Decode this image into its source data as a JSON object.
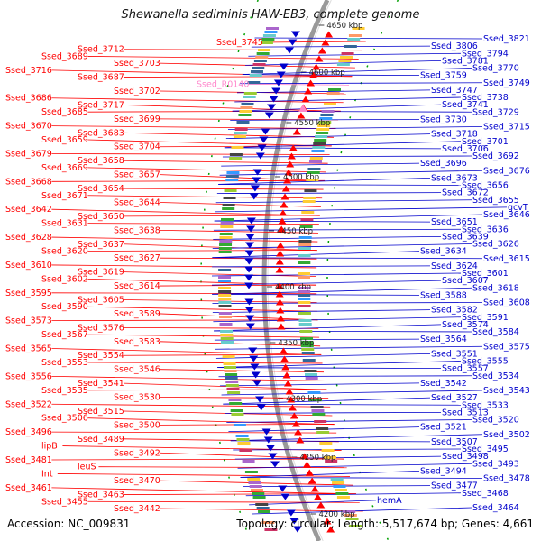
{
  "title": "Shewanella sediminis HAW-EB3, complete genome",
  "footer": {
    "accession": "Accession: NC_009831",
    "summary": "Topology: circular; Length: 5,517,674 bp; Genes: 4,661"
  },
  "colors": {
    "forward": "#ff0000",
    "reverse": "#0000cc",
    "rna": "#ff88cc",
    "backbone": "#999999",
    "gc_marker": "#00a000"
  },
  "kbp_ticks": [
    "4650 kbp",
    "4600 kbp",
    "4550 kbp",
    "4500 kbp",
    "4450 kbp",
    "4400 kbp",
    "4350 kbp",
    "4300 kbp",
    "4250 kbp",
    "4200 kbp"
  ],
  "left_labels": [
    "Ssed_3745",
    "Ssed_3712",
    "Ssed_3689",
    "Ssed_3703",
    "Ssed_3716",
    "Ssed_3687",
    "Ssed_R0140",
    "Ssed_3702",
    "Ssed_3686",
    "Ssed_3717",
    "Ssed_3685",
    "Ssed_3699",
    "Ssed_3670",
    "Ssed_3683",
    "Ssed_3659",
    "Ssed_3704",
    "Ssed_3679",
    "Ssed_3658",
    "Ssed_3669",
    "Ssed_3657",
    "Ssed_3668",
    "Ssed_3654",
    "Ssed_3671",
    "Ssed_3644",
    "Ssed_3642",
    "Ssed_3650",
    "Ssed_3631",
    "Ssed_3638",
    "Ssed_3628",
    "Ssed_3637",
    "Ssed_3620",
    "Ssed_3627",
    "Ssed_3610",
    "Ssed_3619",
    "Ssed_3602",
    "Ssed_3614",
    "Ssed_3595",
    "Ssed_3605",
    "Ssed_3590",
    "Ssed_3589",
    "Ssed_3573",
    "Ssed_3576",
    "Ssed_3567",
    "Ssed_3583",
    "Ssed_3565",
    "Ssed_3554",
    "Ssed_3553",
    "Ssed_3546",
    "Ssed_3556",
    "Ssed_3541",
    "Ssed_3535",
    "Ssed_3530",
    "Ssed_3522",
    "Ssed_3515",
    "Ssed_3506",
    "Ssed_3500",
    "Ssed_3496",
    "Ssed_3489",
    "lipB",
    "Ssed_3492",
    "Ssed_3481",
    "leuS",
    "Int",
    "Ssed_3470",
    "Ssed_3461",
    "Ssed_3463",
    "Ssed_3455",
    "Ssed_3442"
  ],
  "right_labels": [
    "Ssed_3821",
    "Ssed_3806",
    "Ssed_3794",
    "Ssed_3781",
    "Ssed_3770",
    "Ssed_3759",
    "Ssed_3749",
    "Ssed_3747",
    "Ssed_3738",
    "Ssed_3741",
    "Ssed_3729",
    "Ssed_3730",
    "Ssed_3715",
    "Ssed_3718",
    "Ssed_3701",
    "Ssed_3706",
    "Ssed_3692",
    "Ssed_3696",
    "Ssed_3676",
    "Ssed_3673",
    "Ssed_3656",
    "Ssed_3672",
    "Ssed_3655",
    "gcvT",
    "Ssed_3646",
    "Ssed_3651",
    "Ssed_3636",
    "Ssed_3639",
    "Ssed_3626",
    "Ssed_3634",
    "Ssed_3615",
    "Ssed_3624",
    "Ssed_3601",
    "Ssed_3607",
    "Ssed_3618",
    "Ssed_3588",
    "Ssed_3608",
    "Ssed_3582",
    "Ssed_3591",
    "Ssed_3574",
    "Ssed_3584",
    "Ssed_3564",
    "Ssed_3575",
    "Ssed_3551",
    "Ssed_3555",
    "Ssed_3557",
    "Ssed_3534",
    "Ssed_3542",
    "Ssed_3543",
    "Ssed_3527",
    "Ssed_3533",
    "Ssed_3513",
    "Ssed_3520",
    "Ssed_3521",
    "Ssed_3502",
    "Ssed_3507",
    "Ssed_3495",
    "Ssed_3498",
    "Ssed_3493",
    "Ssed_3494",
    "Ssed_3478",
    "Ssed_3477",
    "Ssed_3468",
    "hemA",
    "Ssed_3464"
  ]
}
